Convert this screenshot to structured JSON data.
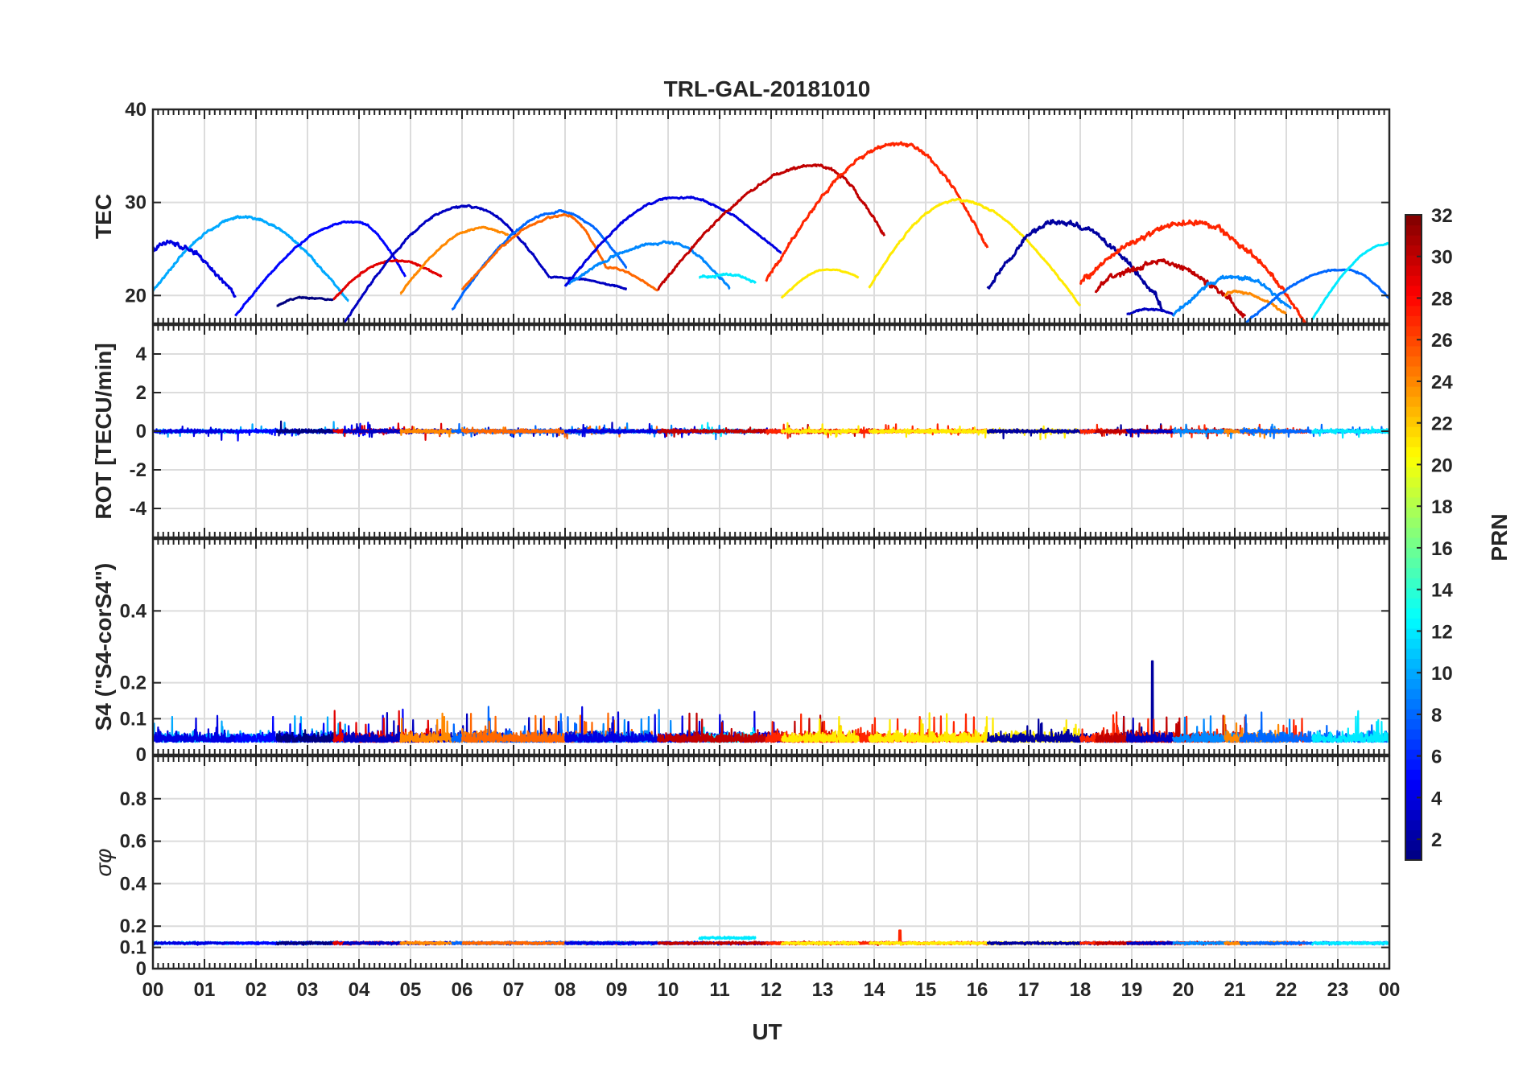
{
  "chart_data": {
    "type": "line",
    "title": "TRL-GAL-20181010",
    "xlabel": "UT",
    "x_ticks": [
      "00",
      "01",
      "02",
      "03",
      "04",
      "05",
      "06",
      "07",
      "08",
      "09",
      "10",
      "11",
      "12",
      "13",
      "14",
      "15",
      "16",
      "17",
      "18",
      "19",
      "20",
      "21",
      "22",
      "23",
      "00"
    ],
    "xlim": [
      0,
      24
    ],
    "grid": true,
    "colorbar": {
      "label": "PRN",
      "range": [
        1,
        32
      ],
      "ticks": [
        "2",
        "4",
        "6",
        "8",
        "10",
        "12",
        "14",
        "16",
        "18",
        "20",
        "22",
        "24",
        "26",
        "28",
        "30",
        "32"
      ],
      "colormap": "jet"
    },
    "panels": [
      {
        "name": "tec",
        "ylabel": "TEC",
        "ylim": [
          17,
          40
        ],
        "yticks": [
          20,
          30,
          40
        ],
        "ytick_labels": [
          "20",
          "30",
          "40"
        ],
        "series": [
          {
            "prn": 10,
            "start": 0.0,
            "end": 3.8,
            "peak_t": 1.75,
            "start_v": 20.5,
            "peak_v": 28.4,
            "end_v": 19.4,
            "noise": 0.2
          },
          {
            "prn": 4,
            "start": 0.0,
            "end": 1.6,
            "peak_t": 0.3,
            "start_v": 25,
            "peak_v": 25.5,
            "end_v": 20.1,
            "noise": 0.45
          },
          {
            "prn": 5,
            "start": 1.6,
            "end": 4.9,
            "peak_t": 3.9,
            "start_v": 17.8,
            "peak_v": 28.0,
            "end_v": 22.0,
            "noise": 0.15
          },
          {
            "prn": 1,
            "start": 2.4,
            "end": 3.5,
            "peak_t": 2.9,
            "start_v": 18.9,
            "peak_v": 19.8,
            "end_v": 19.5,
            "noise": 0.15
          },
          {
            "prn": 29,
            "start": 3.5,
            "end": 5.6,
            "peak_t": 4.7,
            "start_v": 19.6,
            "peak_v": 23.8,
            "end_v": 22.0,
            "noise": 0.15
          },
          {
            "prn": 3,
            "start": 3.7,
            "end": 7.7,
            "peak_t": 6.1,
            "start_v": 17.0,
            "peak_v": 29.6,
            "end_v": 22.0,
            "noise": 0.15
          },
          {
            "prn": 24,
            "start": 4.8,
            "end": 6.9,
            "peak_t": 6.4,
            "start_v": 20.2,
            "peak_v": 27.3,
            "end_v": 26.5,
            "noise": 0.15
          },
          {
            "prn": 8,
            "start": 5.8,
            "end": 9.2,
            "peak_t": 7.9,
            "start_v": 18.5,
            "peak_v": 29.0,
            "end_v": 23.0,
            "noise": 0.15
          },
          {
            "prn": 25,
            "start": 6.0,
            "end": 8.8,
            "peak_t": 8.0,
            "start_v": 20.6,
            "peak_v": 28.6,
            "end_v": 23.0,
            "noise": 0.15
          },
          {
            "prn": 25,
            "start": 8.8,
            "end": 9.8,
            "peak_t": 8.8,
            "start_v": 23.0,
            "peak_v": 23.0,
            "end_v": 20.5,
            "noise": 0.15
          },
          {
            "prn": 3,
            "start": 7.7,
            "end": 9.2,
            "peak_t": 7.7,
            "start_v": 22.0,
            "peak_v": 22.0,
            "end_v": 20.7,
            "noise": 0.1
          },
          {
            "prn": 9,
            "start": 8.0,
            "end": 11.2,
            "peak_t": 10.0,
            "start_v": 21.0,
            "peak_v": 25.7,
            "end_v": 20.7,
            "noise": 0.2
          },
          {
            "prn": 4,
            "start": 8.0,
            "end": 12.2,
            "peak_t": 10.2,
            "start_v": 21.0,
            "peak_v": 30.6,
            "end_v": 24.5,
            "noise": 0.15
          },
          {
            "prn": 12,
            "start": 10.6,
            "end": 11.7,
            "peak_t": 11.2,
            "start_v": 21.9,
            "peak_v": 22.3,
            "end_v": 21.3,
            "noise": 0.2
          },
          {
            "prn": 30,
            "start": 9.8,
            "end": 12.9,
            "peak_t": 12.9,
            "start_v": 20.7,
            "peak_v": 34.0,
            "end_v": 34.0,
            "noise": 0.2
          },
          {
            "prn": 30,
            "start": 12.9,
            "end": 14.2,
            "peak_t": 12.9,
            "start_v": 34.0,
            "peak_v": 34.0,
            "end_v": 26.3,
            "noise": 0.3
          },
          {
            "prn": 27,
            "start": 11.9,
            "end": 16.2,
            "peak_t": 14.5,
            "start_v": 21.5,
            "peak_v": 36.3,
            "end_v": 25.0,
            "noise": 0.3
          },
          {
            "prn": 21,
            "start": 12.2,
            "end": 13.7,
            "peak_t": 13.1,
            "start_v": 19.7,
            "peak_v": 22.8,
            "end_v": 22.0,
            "noise": 0.1
          },
          {
            "prn": 21,
            "start": 13.9,
            "end": 18.0,
            "peak_t": 15.6,
            "start_v": 20.8,
            "peak_v": 30.2,
            "end_v": 18.9,
            "noise": 0.15
          },
          {
            "prn": 2,
            "start": 16.2,
            "end": 19.6,
            "peak_t": 17.6,
            "start_v": 20.8,
            "peak_v": 28.0,
            "end_v": 18.9,
            "noise": 0.45
          },
          {
            "prn": 27,
            "start": 18.0,
            "end": 22.4,
            "peak_t": 20.2,
            "start_v": 21.5,
            "peak_v": 27.8,
            "end_v": 16.8,
            "noise": 0.5
          },
          {
            "prn": 30,
            "start": 18.3,
            "end": 21.2,
            "peak_t": 19.5,
            "start_v": 20.5,
            "peak_v": 23.6,
            "end_v": 17.7,
            "noise": 0.5
          },
          {
            "prn": 3,
            "start": 18.9,
            "end": 19.8,
            "peak_t": 19.3,
            "start_v": 18.0,
            "peak_v": 18.5,
            "end_v": 18.2,
            "noise": 0.15
          },
          {
            "prn": 9,
            "start": 19.8,
            "end": 22.1,
            "peak_t": 21.0,
            "start_v": 17.8,
            "peak_v": 22.0,
            "end_v": 18.6,
            "noise": 0.3
          },
          {
            "prn": 24,
            "start": 20.8,
            "end": 22.0,
            "peak_t": 21.0,
            "start_v": 20.0,
            "peak_v": 20.4,
            "end_v": 18.0,
            "noise": 0.2
          },
          {
            "prn": 8,
            "start": 21.1,
            "end": 24.0,
            "peak_t": 23.1,
            "start_v": 16.5,
            "peak_v": 22.8,
            "end_v": 19.7,
            "noise": 0.15
          },
          {
            "prn": 12,
            "start": 22.5,
            "end": 24.0,
            "peak_t": 24.0,
            "start_v": 17.4,
            "peak_v": 25.6,
            "end_v": 25.6,
            "noise": 0.1
          }
        ]
      },
      {
        "name": "rot",
        "ylabel": "ROT [TECU/min]",
        "ylim": [
          -5.5,
          5.5
        ],
        "yticks": [
          -4,
          -2,
          0,
          2,
          4
        ],
        "ytick_labels": [
          "-4",
          "-2",
          "0",
          "2",
          "4"
        ],
        "baseline": 0,
        "noise_amplitude": 0.15,
        "max_excursion": 0.8
      },
      {
        "name": "s4",
        "ylabel": "S4 (\"S4-corS4\")",
        "ylim": [
          0,
          0.6
        ],
        "yticks": [
          0,
          0.1,
          0.2,
          0.4
        ],
        "ytick_labels": [
          "0",
          "0.1",
          "0.2",
          "0.4"
        ],
        "baseline": 0.05,
        "noise_amplitude": 0.04,
        "max_value": 0.26,
        "max_value_time": 19.4
      },
      {
        "name": "sigma_phi",
        "ylabel": "σφ",
        "ylim": [
          0,
          1.0
        ],
        "yticks": [
          0,
          0.1,
          0.2,
          0.4,
          0.6,
          0.8
        ],
        "ytick_labels": [
          "0",
          "0.1",
          "0.2",
          "0.4",
          "0.6",
          "0.8"
        ],
        "baseline": 0.12,
        "noise_amplitude": 0.006,
        "max_value": 0.18,
        "max_value_time": 14.5
      }
    ],
    "tracks": [
      {
        "prn": 10,
        "start": 0.0,
        "end": 3.8
      },
      {
        "prn": 4,
        "start": 0.0,
        "end": 1.6
      },
      {
        "prn": 5,
        "start": 1.6,
        "end": 4.9
      },
      {
        "prn": 1,
        "start": 2.4,
        "end": 3.5
      },
      {
        "prn": 29,
        "start": 3.5,
        "end": 5.6
      },
      {
        "prn": 3,
        "start": 3.7,
        "end": 9.2
      },
      {
        "prn": 24,
        "start": 4.8,
        "end": 6.9
      },
      {
        "prn": 8,
        "start": 5.8,
        "end": 9.2
      },
      {
        "prn": 25,
        "start": 6.0,
        "end": 9.8
      },
      {
        "prn": 9,
        "start": 8.0,
        "end": 11.2
      },
      {
        "prn": 4,
        "start": 8.0,
        "end": 12.2
      },
      {
        "prn": 12,
        "start": 10.6,
        "end": 11.7
      },
      {
        "prn": 30,
        "start": 9.8,
        "end": 14.2
      },
      {
        "prn": 27,
        "start": 11.9,
        "end": 16.2
      },
      {
        "prn": 21,
        "start": 12.2,
        "end": 13.7
      },
      {
        "prn": 21,
        "start": 13.9,
        "end": 18.0
      },
      {
        "prn": 2,
        "start": 16.2,
        "end": 19.6
      },
      {
        "prn": 27,
        "start": 18.0,
        "end": 22.4
      },
      {
        "prn": 30,
        "start": 18.3,
        "end": 21.2
      },
      {
        "prn": 3,
        "start": 18.9,
        "end": 19.8
      },
      {
        "prn": 9,
        "start": 19.8,
        "end": 22.1
      },
      {
        "prn": 24,
        "start": 20.8,
        "end": 22.0
      },
      {
        "prn": 8,
        "start": 21.1,
        "end": 24.0
      },
      {
        "prn": 12,
        "start": 22.5,
        "end": 24.0
      }
    ]
  }
}
